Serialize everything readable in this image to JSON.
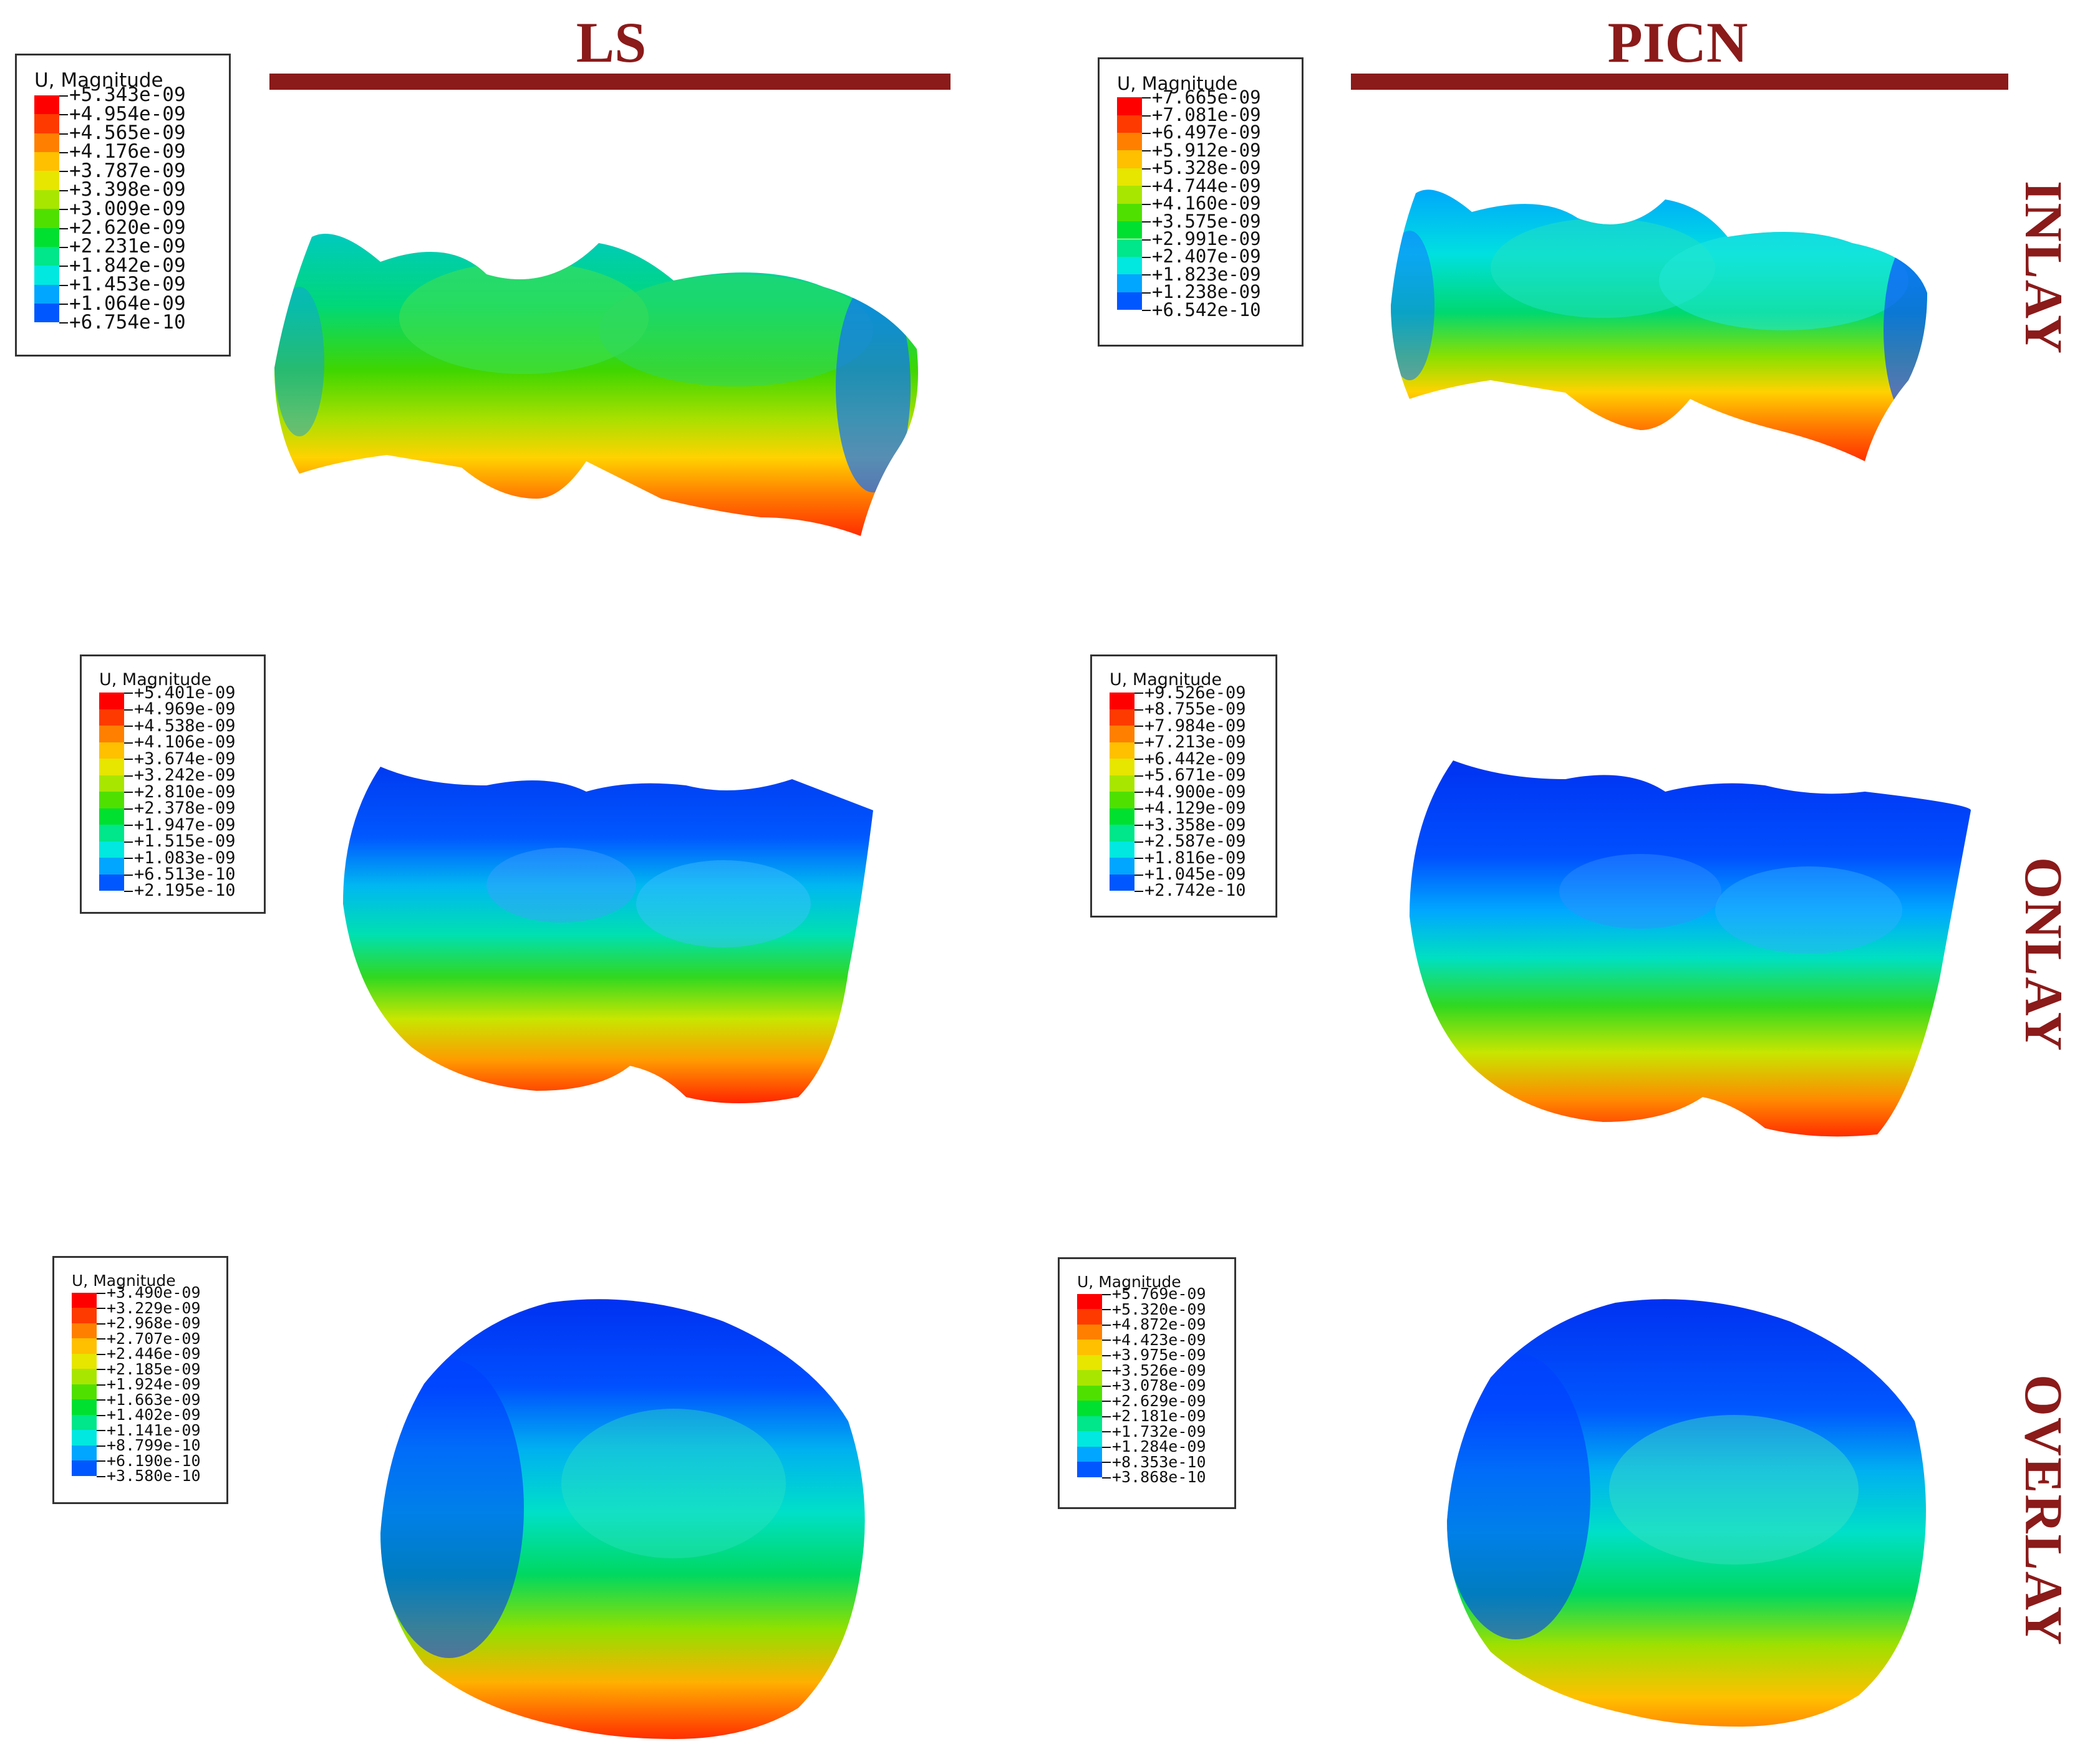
{
  "columns": [
    {
      "label": "LS"
    },
    {
      "label": "PICN"
    }
  ],
  "rows": [
    {
      "label": "INLAY"
    },
    {
      "label": "ONLAY"
    },
    {
      "label": "OVERLAY"
    }
  ],
  "colormap": [
    "#0000ff",
    "#0057ff",
    "#00a6ff",
    "#00e8e0",
    "#00e68a",
    "#00e030",
    "#4fe000",
    "#a8e600",
    "#e6e600",
    "#ffc000",
    "#ff8000",
    "#ff3a00",
    "#ff0000"
  ],
  "legends": {
    "ls_inlay": {
      "title": "U, Magnitude",
      "values": [
        "+5.343e-09",
        "+4.954e-09",
        "+4.565e-09",
        "+4.176e-09",
        "+3.787e-09",
        "+3.398e-09",
        "+3.009e-09",
        "+2.620e-09",
        "+2.231e-09",
        "+1.842e-09",
        "+1.453e-09",
        "+1.064e-09",
        "+6.754e-10"
      ]
    },
    "picn_inlay": {
      "title": "U, Magnitude",
      "values": [
        "+7.665e-09",
        "+7.081e-09",
        "+6.497e-09",
        "+5.912e-09",
        "+5.328e-09",
        "+4.744e-09",
        "+4.160e-09",
        "+3.575e-09",
        "+2.991e-09",
        "+2.407e-09",
        "+1.823e-09",
        "+1.238e-09",
        "+6.542e-10"
      ]
    },
    "ls_onlay": {
      "title": "U, Magnitude",
      "values": [
        "+5.401e-09",
        "+4.969e-09",
        "+4.538e-09",
        "+4.106e-09",
        "+3.674e-09",
        "+3.242e-09",
        "+2.810e-09",
        "+2.378e-09",
        "+1.947e-09",
        "+1.515e-09",
        "+1.083e-09",
        "+6.513e-10",
        "+2.195e-10"
      ]
    },
    "picn_onlay": {
      "title": "U, Magnitude",
      "values": [
        "+9.526e-09",
        "+8.755e-09",
        "+7.984e-09",
        "+7.213e-09",
        "+6.442e-09",
        "+5.671e-09",
        "+4.900e-09",
        "+4.129e-09",
        "+3.358e-09",
        "+2.587e-09",
        "+1.816e-09",
        "+1.045e-09",
        "+2.742e-10"
      ]
    },
    "ls_overlay": {
      "title": "U, Magnitude",
      "values": [
        "+3.490e-09",
        "+3.229e-09",
        "+2.968e-09",
        "+2.707e-09",
        "+2.446e-09",
        "+2.185e-09",
        "+1.924e-09",
        "+1.663e-09",
        "+1.402e-09",
        "+1.141e-09",
        "+8.799e-10",
        "+6.190e-10",
        "+3.580e-10"
      ]
    },
    "picn_overlay": {
      "title": "U, Magnitude",
      "values": [
        "+5.769e-09",
        "+5.320e-09",
        "+4.872e-09",
        "+4.423e-09",
        "+3.975e-09",
        "+3.526e-09",
        "+3.078e-09",
        "+2.629e-09",
        "+2.181e-09",
        "+1.732e-09",
        "+1.284e-09",
        "+8.353e-10",
        "+3.868e-10"
      ]
    }
  }
}
